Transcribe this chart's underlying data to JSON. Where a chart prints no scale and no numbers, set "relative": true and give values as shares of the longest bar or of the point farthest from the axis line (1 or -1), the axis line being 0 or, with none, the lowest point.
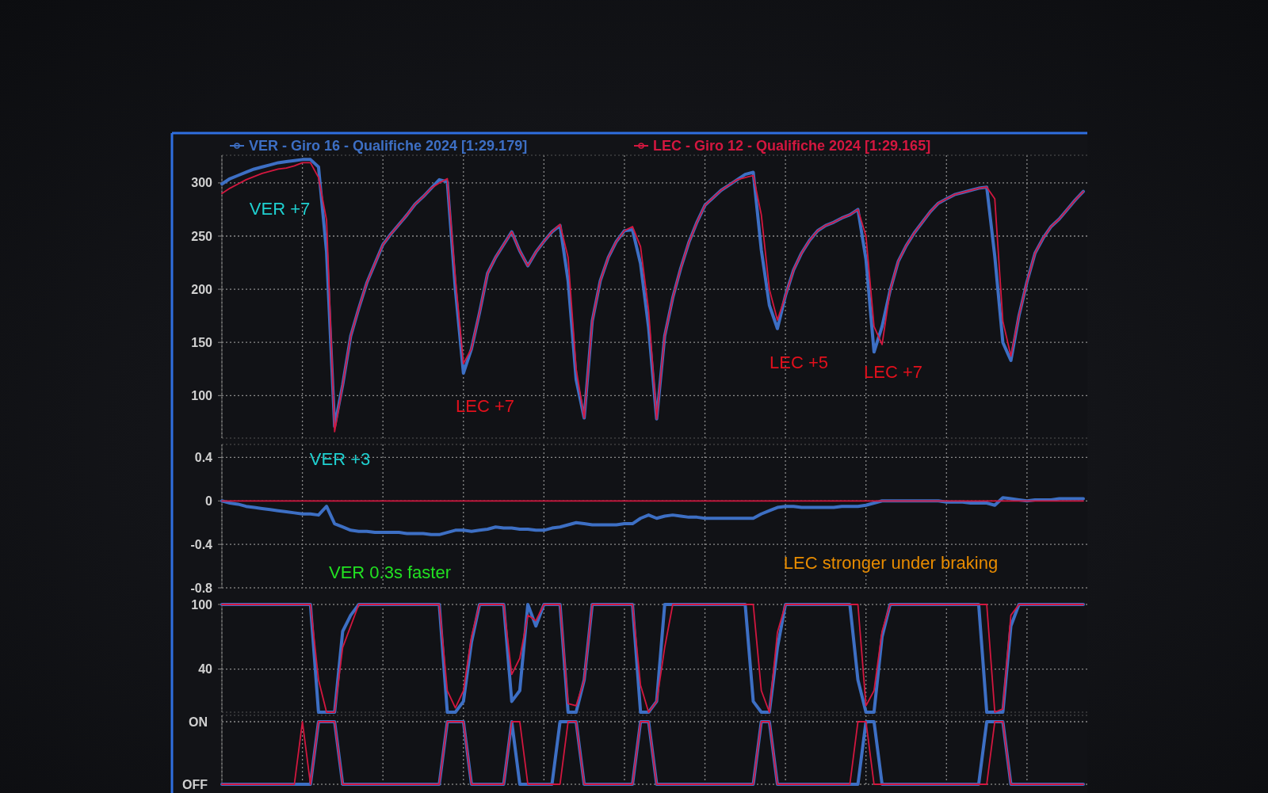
{
  "chart_data": [
    {
      "type": "line",
      "legend": "top",
      "grid": true,
      "tick_labels": "y",
      "ylim": [
        60,
        326
      ],
      "yticks": [
        100,
        150,
        200,
        250,
        300
      ],
      "categories": [
        null,
        null,
        null,
        null,
        null,
        null,
        null,
        null,
        null,
        null,
        null,
        null,
        null,
        null,
        null,
        null,
        null,
        null,
        null,
        null,
        null,
        null,
        null,
        null,
        null,
        null,
        null,
        null,
        null,
        null,
        null,
        null,
        null,
        null,
        null,
        null,
        null,
        null,
        null,
        null,
        null,
        null,
        null,
        null,
        null,
        null,
        null,
        null,
        null,
        null,
        null,
        null,
        null,
        null,
        null,
        null,
        null,
        null,
        null,
        null,
        null,
        null,
        null,
        null,
        null,
        null,
        null,
        null,
        null,
        null,
        null,
        null,
        null,
        null,
        null,
        null,
        null,
        null,
        null,
        null,
        null,
        null,
        null,
        null,
        null,
        null,
        null,
        null,
        null,
        null,
        null,
        null,
        null,
        null,
        null,
        null,
        null,
        null,
        null,
        null,
        null,
        null,
        null,
        null,
        null,
        null,
        null,
        null
      ],
      "series": [
        {
          "name": "VER - Giro 16 - Qualifiche 2024 [1:29.179]",
          "color": "#3d6fc4",
          "values": [
            299,
            304,
            307,
            310,
            313,
            315,
            317,
            319,
            320,
            321,
            322,
            322,
            315,
            235,
            71,
            110,
            156,
            182,
            206,
            224,
            242,
            252,
            261,
            270,
            280,
            287,
            295,
            303,
            301,
            200,
            121,
            144,
            178,
            215,
            230,
            242,
            254,
            236,
            222,
            235,
            245,
            254,
            260,
            208,
            115,
            79,
            170,
            208,
            230,
            245,
            255,
            256,
            224,
            164,
            78,
            156,
            192,
            220,
            244,
            263,
            279,
            286,
            293,
            298,
            303,
            308,
            310,
            237,
            185,
            163,
            194,
            218,
            234,
            246,
            255,
            260,
            263,
            267,
            270,
            275,
            228,
            141,
            165,
            199,
            226,
            241,
            253,
            263,
            273,
            281,
            285,
            289,
            291,
            293,
            295,
            296,
            231,
            150,
            133,
            175,
            207,
            234,
            248,
            259,
            266,
            275,
            284,
            292
          ]
        },
        {
          "name": "LEC - Giro 12 - Qualifiche 2024 [1:29.165]",
          "color": "#d3173f",
          "values": [
            290,
            295,
            299,
            303,
            306,
            309,
            311,
            313,
            314,
            316,
            319,
            319,
            305,
            265,
            66,
            110,
            156,
            182,
            206,
            224,
            242,
            252,
            261,
            270,
            280,
            287,
            295,
            300,
            304,
            210,
            130,
            144,
            178,
            215,
            230,
            242,
            254,
            236,
            222,
            235,
            245,
            254,
            261,
            230,
            125,
            79,
            170,
            208,
            230,
            245,
            255,
            259,
            240,
            180,
            78,
            156,
            192,
            220,
            244,
            263,
            279,
            286,
            293,
            298,
            303,
            305,
            307,
            270,
            200,
            171,
            194,
            218,
            234,
            246,
            255,
            260,
            263,
            267,
            270,
            275,
            250,
            165,
            148,
            199,
            226,
            241,
            253,
            263,
            273,
            281,
            285,
            289,
            291,
            293,
            295,
            296,
            285,
            170,
            137,
            175,
            207,
            234,
            248,
            259,
            266,
            275,
            284,
            292
          ]
        }
      ],
      "annotations": [
        "VER +7",
        "LEC +7",
        "LEC +5",
        "LEC +7"
      ]
    },
    {
      "type": "line",
      "grid": true,
      "tick_labels": "y",
      "ylim": [
        -0.8,
        0.52
      ],
      "yticks": [
        0.4,
        0,
        -0.4,
        -0.8
      ],
      "categories": [
        null,
        null,
        null,
        null,
        null,
        null,
        null,
        null,
        null,
        null,
        null,
        null,
        null,
        null,
        null,
        null,
        null,
        null,
        null,
        null,
        null,
        null,
        null,
        null,
        null,
        null,
        null,
        null,
        null,
        null,
        null,
        null,
        null,
        null,
        null,
        null,
        null,
        null,
        null,
        null,
        null,
        null,
        null,
        null,
        null,
        null,
        null,
        null,
        null,
        null,
        null,
        null,
        null,
        null,
        null,
        null,
        null,
        null,
        null,
        null,
        null,
        null,
        null,
        null,
        null,
        null,
        null,
        null,
        null,
        null,
        null,
        null,
        null,
        null,
        null,
        null,
        null,
        null,
        null,
        null,
        null,
        null,
        null,
        null,
        null,
        null,
        null,
        null,
        null,
        null,
        null,
        null,
        null,
        null,
        null,
        null,
        null,
        null,
        null,
        null,
        null,
        null,
        null,
        null,
        null,
        null,
        null,
        null
      ],
      "series": [
        {
          "color": "#3d6fc4",
          "values": [
            0,
            -0.02,
            -0.03,
            -0.05,
            -0.06,
            -0.07,
            -0.08,
            -0.09,
            -0.1,
            -0.11,
            -0.12,
            -0.12,
            -0.13,
            -0.05,
            -0.21,
            -0.24,
            -0.27,
            -0.28,
            -0.28,
            -0.29,
            -0.29,
            -0.29,
            -0.29,
            -0.3,
            -0.3,
            -0.3,
            -0.31,
            -0.31,
            -0.29,
            -0.27,
            -0.27,
            -0.28,
            -0.27,
            -0.26,
            -0.24,
            -0.25,
            -0.25,
            -0.26,
            -0.26,
            -0.27,
            -0.27,
            -0.25,
            -0.24,
            -0.22,
            -0.2,
            -0.21,
            -0.22,
            -0.22,
            -0.22,
            -0.22,
            -0.21,
            -0.21,
            -0.16,
            -0.13,
            -0.16,
            -0.14,
            -0.13,
            -0.14,
            -0.15,
            -0.15,
            -0.16,
            -0.16,
            -0.16,
            -0.16,
            -0.16,
            -0.16,
            -0.16,
            -0.12,
            -0.09,
            -0.06,
            -0.05,
            -0.05,
            -0.06,
            -0.06,
            -0.06,
            -0.06,
            -0.06,
            -0.05,
            -0.05,
            -0.05,
            -0.04,
            -0.02,
            0,
            0,
            0,
            0,
            0,
            0,
            0,
            0,
            -0.01,
            -0.01,
            -0.01,
            -0.02,
            -0.02,
            -0.02,
            -0.04,
            0.03,
            0.02,
            0.01,
            0,
            0.01,
            0.01,
            0.01,
            0.02,
            0.02,
            0.02,
            0.02
          ]
        },
        {
          "color": "#d3173f",
          "values": [
            0,
            0,
            0,
            0,
            0,
            0,
            0,
            0,
            0,
            0,
            0,
            0,
            0,
            0,
            0,
            0,
            0,
            0,
            0,
            0,
            0,
            0,
            0,
            0,
            0,
            0,
            0,
            0,
            0,
            0,
            0,
            0,
            0,
            0,
            0,
            0,
            0,
            0,
            0,
            0,
            0,
            0,
            0,
            0,
            0,
            0,
            0,
            0,
            0,
            0,
            0,
            0,
            0,
            0,
            0,
            0,
            0,
            0,
            0,
            0,
            0,
            0,
            0,
            0,
            0,
            0,
            0,
            0,
            0,
            0,
            0,
            0,
            0,
            0,
            0,
            0,
            0,
            0,
            0,
            0,
            0,
            0,
            0,
            0,
            0,
            0,
            0,
            0,
            0,
            0,
            0,
            0,
            0,
            0,
            0,
            0,
            0,
            0,
            0,
            0,
            0,
            0,
            0,
            0,
            0,
            0,
            0,
            0
          ]
        }
      ],
      "annotations": [
        "VER +3",
        "VER 0.3s faster",
        "LEC stronger under braking"
      ]
    },
    {
      "type": "line",
      "grid": true,
      "tick_labels": "y",
      "ylim": [
        0,
        100
      ],
      "yticks": [
        100,
        40
      ],
      "categories": [
        null,
        null,
        null,
        null,
        null,
        null,
        null,
        null,
        null,
        null,
        null,
        null,
        null,
        null,
        null,
        null,
        null,
        null,
        null,
        null,
        null,
        null,
        null,
        null,
        null,
        null,
        null,
        null,
        null,
        null,
        null,
        null,
        null,
        null,
        null,
        null,
        null,
        null,
        null,
        null,
        null,
        null,
        null,
        null,
        null,
        null,
        null,
        null,
        null,
        null,
        null,
        null,
        null,
        null,
        null,
        null,
        null,
        null,
        null,
        null,
        null,
        null,
        null,
        null,
        null,
        null,
        null,
        null,
        null,
        null,
        null,
        null,
        null,
        null,
        null,
        null,
        null,
        null,
        null,
        null,
        null,
        null,
        null,
        null,
        null,
        null,
        null,
        null,
        null,
        null,
        null,
        null,
        null,
        null,
        null,
        null,
        null,
        null,
        null,
        null,
        null,
        null,
        null,
        null,
        null,
        null,
        null,
        null
      ],
      "series": [
        {
          "color": "#3d6fc4",
          "values": [
            100,
            100,
            100,
            100,
            100,
            100,
            100,
            100,
            100,
            100,
            100,
            100,
            0,
            0,
            0,
            75,
            90,
            100,
            100,
            100,
            100,
            100,
            100,
            100,
            100,
            100,
            100,
            100,
            0,
            0,
            10,
            65,
            100,
            100,
            100,
            100,
            10,
            20,
            100,
            80,
            100,
            100,
            100,
            0,
            0,
            30,
            100,
            100,
            100,
            100,
            100,
            100,
            0,
            0,
            10,
            100,
            100,
            100,
            100,
            100,
            100,
            100,
            100,
            100,
            100,
            100,
            10,
            0,
            0,
            60,
            100,
            100,
            100,
            100,
            100,
            100,
            100,
            100,
            100,
            30,
            0,
            0,
            70,
            100,
            100,
            100,
            100,
            100,
            100,
            100,
            100,
            100,
            100,
            100,
            100,
            0,
            0,
            0,
            80,
            100,
            100,
            100,
            100,
            100,
            100,
            100,
            100,
            100
          ]
        },
        {
          "color": "#d3173f",
          "values": [
            100,
            100,
            100,
            100,
            100,
            100,
            100,
            100,
            100,
            100,
            100,
            100,
            30,
            0,
            0,
            60,
            80,
            100,
            100,
            100,
            100,
            100,
            100,
            100,
            100,
            100,
            100,
            100,
            20,
            4,
            20,
            70,
            100,
            100,
            100,
            100,
            35,
            50,
            90,
            85,
            100,
            100,
            100,
            8,
            6,
            30,
            100,
            100,
            100,
            100,
            100,
            100,
            25,
            0,
            10,
            60,
            100,
            100,
            100,
            100,
            100,
            100,
            100,
            100,
            100,
            100,
            100,
            20,
            0,
            74,
            100,
            100,
            100,
            100,
            100,
            100,
            100,
            100,
            100,
            100,
            6,
            20,
            75,
            100,
            100,
            100,
            100,
            100,
            100,
            100,
            100,
            100,
            100,
            100,
            100,
            100,
            0,
            3,
            90,
            100,
            100,
            100,
            100,
            100,
            100,
            100,
            100,
            100
          ]
        }
      ]
    },
    {
      "type": "line",
      "grid": true,
      "relative": true,
      "annotations": [
        "ON",
        "OFF"
      ],
      "categories": [
        null,
        null,
        null,
        null,
        null,
        null,
        null,
        null,
        null,
        null,
        null,
        null,
        null,
        null,
        null,
        null,
        null,
        null,
        null,
        null,
        null,
        null,
        null,
        null,
        null,
        null,
        null,
        null,
        null,
        null,
        null,
        null,
        null,
        null,
        null,
        null,
        null,
        null,
        null,
        null,
        null,
        null,
        null,
        null,
        null,
        null,
        null,
        null,
        null,
        null,
        null,
        null,
        null,
        null,
        null,
        null,
        null,
        null,
        null,
        null,
        null,
        null,
        null,
        null,
        null,
        null,
        null,
        null,
        null,
        null,
        null,
        null,
        null,
        null,
        null,
        null,
        null,
        null,
        null,
        null,
        null,
        null,
        null,
        null,
        null,
        null,
        null,
        null,
        null,
        null,
        null,
        null,
        null,
        null,
        null,
        null,
        null,
        null,
        null,
        null,
        null,
        null,
        null,
        null,
        null,
        null,
        null,
        null
      ],
      "series": [
        {
          "color": "#3d6fc4",
          "values": [
            0,
            0,
            0,
            0,
            0,
            0,
            0,
            0,
            0,
            0,
            0,
            0,
            1,
            1,
            1,
            0,
            0,
            0,
            0,
            0,
            0,
            0,
            0,
            0,
            0,
            0,
            0,
            0,
            1,
            1,
            1,
            0,
            0,
            0,
            0,
            0,
            1,
            0,
            0,
            0,
            0,
            0,
            1,
            1,
            1,
            0,
            0,
            0,
            0,
            0,
            0,
            0,
            1,
            1,
            0,
            0,
            0,
            0,
            0,
            0,
            0,
            0,
            0,
            0,
            0,
            0,
            0,
            1,
            1,
            0,
            0,
            0,
            0,
            0,
            0,
            0,
            0,
            0,
            0,
            0,
            1,
            1,
            0,
            0,
            0,
            0,
            0,
            0,
            0,
            0,
            0,
            0,
            0,
            0,
            0,
            1,
            1,
            1,
            0,
            0,
            0,
            0,
            0,
            0,
            0,
            0,
            0,
            0
          ]
        },
        {
          "color": "#d3173f",
          "values": [
            0,
            0,
            0,
            0,
            0,
            0,
            0,
            0,
            0,
            0,
            1,
            0,
            1,
            1,
            1,
            0,
            0,
            0,
            0,
            0,
            0,
            0,
            0,
            0,
            0,
            0,
            0,
            0,
            1,
            1,
            1,
            0,
            0,
            0,
            0,
            0,
            1,
            1,
            0,
            0,
            0,
            0,
            0,
            1,
            1,
            0,
            0,
            0,
            0,
            0,
            0,
            0,
            1,
            1,
            0,
            0,
            0,
            0,
            0,
            0,
            0,
            0,
            0,
            0,
            0,
            0,
            0,
            1,
            1,
            0,
            0,
            0,
            0,
            0,
            0,
            0,
            0,
            0,
            0,
            1,
            1,
            0,
            0,
            0,
            0,
            0,
            0,
            0,
            0,
            0,
            0,
            0,
            0,
            0,
            0,
            0,
            1,
            1,
            0,
            0,
            0,
            0,
            0,
            0,
            0,
            0,
            0,
            0
          ]
        }
      ]
    }
  ]
}
